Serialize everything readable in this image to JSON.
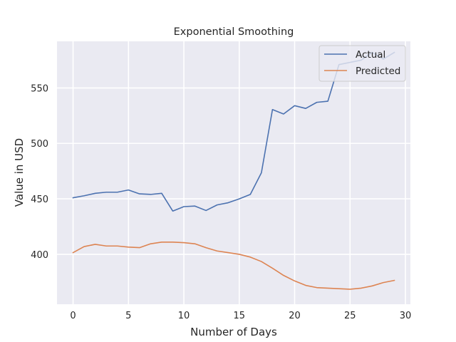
{
  "chart_data": {
    "type": "line",
    "title": "Exponential Smoothing",
    "xlabel": "Number of Days",
    "ylabel": "Value in USD",
    "xlim": [
      -1.45,
      30.45
    ],
    "ylim": [
      355,
      592
    ],
    "xticks": [
      0,
      5,
      10,
      15,
      20,
      25,
      30
    ],
    "yticks": [
      400,
      450,
      500,
      550
    ],
    "grid": true,
    "legend_position": "top-right",
    "x": [
      0,
      1,
      2,
      3,
      4,
      5,
      6,
      7,
      8,
      9,
      10,
      11,
      12,
      13,
      14,
      15,
      16,
      17,
      18,
      19,
      20,
      21,
      22,
      23,
      24,
      25,
      26,
      27,
      28,
      29
    ],
    "series": [
      {
        "name": "Actual",
        "color": "#4c72b0",
        "values": [
          451,
          452.8,
          455,
          456,
          456,
          458,
          454.5,
          454,
          455,
          439,
          443,
          443.5,
          439.5,
          444.5,
          446.5,
          450,
          454,
          473.5,
          530.5,
          526.5,
          534,
          531.5,
          537,
          538,
          571,
          573,
          575,
          582,
          576,
          582
        ]
      },
      {
        "name": "Predicted",
        "color": "#dd8452",
        "values": [
          401.5,
          407,
          409,
          407.5,
          407.5,
          406.5,
          406,
          409.5,
          411,
          411,
          410.5,
          409.5,
          406,
          403,
          401.5,
          400,
          397.5,
          393.5,
          387.5,
          381,
          376,
          372,
          370,
          369.5,
          369,
          368.5,
          369.5,
          371.5,
          374.5,
          376.5
        ]
      }
    ]
  }
}
